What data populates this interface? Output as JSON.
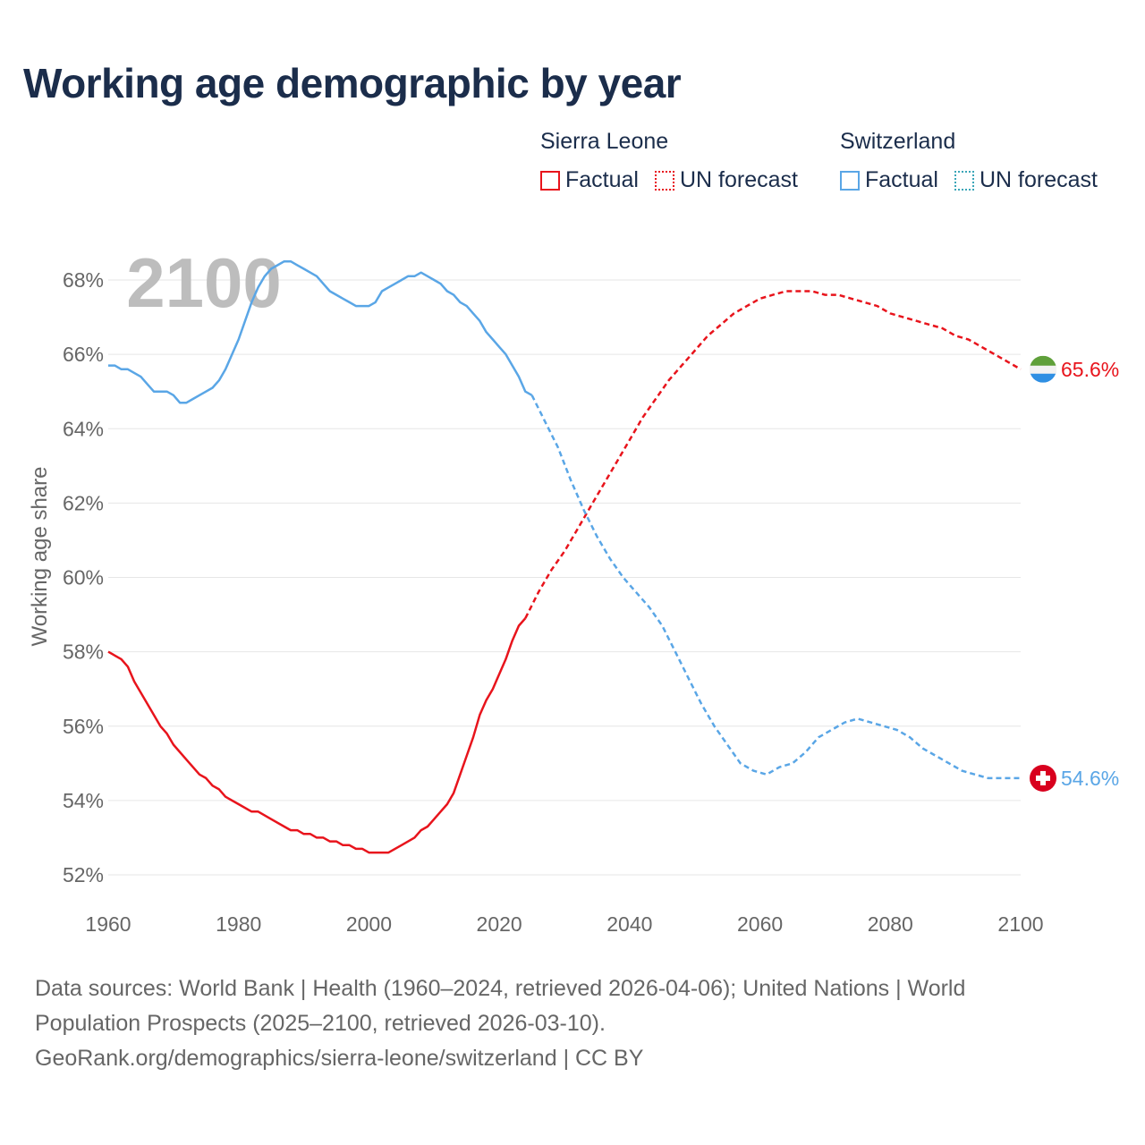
{
  "title": "Working age demographic by year",
  "legend": {
    "groups": [
      {
        "country": "Sierra Leone",
        "factual": "Factual",
        "forecast": "UN forecast"
      },
      {
        "country": "Switzerland",
        "factual": "Factual",
        "forecast": "UN forecast"
      }
    ]
  },
  "year_overlay": "2100",
  "source": {
    "line1": "Data sources: World Bank | Health (1960–2024, retrieved 2026-04-06); United Nations | World",
    "line2": "Population Prospects (2025–2100, retrieved 2026-03-10).",
    "line3": "GeoRank.org/demographics/sierra-leone/switzerland | CC BY"
  },
  "colors": {
    "sierra_leone": "#e8141c",
    "switzerland": "#5aa6e6",
    "title": "#1b2d4b",
    "grid": "#e6e6e6",
    "axis_text": "#666666",
    "overlay": "#bdbdbd"
  },
  "chart_data": {
    "type": "line",
    "title": "Working age demographic by year",
    "ylabel": "Working age share",
    "xlabel": "",
    "xlim": [
      1960,
      2100
    ],
    "ylim": [
      51.5,
      69.0
    ],
    "x_ticks": [
      1960,
      1980,
      2000,
      2020,
      2040,
      2060,
      2080,
      2100
    ],
    "x_tick_labels": [
      "1960",
      "1980",
      "2000",
      "2020",
      "2040",
      "2060",
      "2080",
      "2100"
    ],
    "y_ticks": [
      52,
      54,
      56,
      58,
      60,
      62,
      64,
      66,
      68
    ],
    "y_tick_labels": [
      "52%",
      "54%",
      "56%",
      "58%",
      "60%",
      "62%",
      "64%",
      "66%",
      "68%"
    ],
    "forecast_start": 2024,
    "series": [
      {
        "name": "Sierra Leone",
        "end_label": "65.6%",
        "end_icon": "sierra-leone-flag-icon",
        "points": [
          [
            1960,
            58.0
          ],
          [
            1962,
            57.8
          ],
          [
            1963,
            57.6
          ],
          [
            1964,
            57.2
          ],
          [
            1966,
            56.6
          ],
          [
            1968,
            56.0
          ],
          [
            1969,
            55.8
          ],
          [
            1970,
            55.5
          ],
          [
            1972,
            55.1
          ],
          [
            1974,
            54.7
          ],
          [
            1975,
            54.6
          ],
          [
            1976,
            54.4
          ],
          [
            1977,
            54.3
          ],
          [
            1978,
            54.1
          ],
          [
            1980,
            53.9
          ],
          [
            1982,
            53.7
          ],
          [
            1983,
            53.7
          ],
          [
            1985,
            53.5
          ],
          [
            1987,
            53.3
          ],
          [
            1988,
            53.2
          ],
          [
            1989,
            53.2
          ],
          [
            1990,
            53.1
          ],
          [
            1991,
            53.1
          ],
          [
            1992,
            53.0
          ],
          [
            1993,
            53.0
          ],
          [
            1994,
            52.9
          ],
          [
            1995,
            52.9
          ],
          [
            1996,
            52.8
          ],
          [
            1997,
            52.8
          ],
          [
            1998,
            52.7
          ],
          [
            1999,
            52.7
          ],
          [
            2000,
            52.6
          ],
          [
            2003,
            52.6
          ],
          [
            2005,
            52.8
          ],
          [
            2007,
            53.0
          ],
          [
            2008,
            53.2
          ],
          [
            2009,
            53.3
          ],
          [
            2010,
            53.5
          ],
          [
            2011,
            53.7
          ],
          [
            2012,
            53.9
          ],
          [
            2013,
            54.2
          ],
          [
            2014,
            54.7
          ],
          [
            2015,
            55.2
          ],
          [
            2016,
            55.7
          ],
          [
            2017,
            56.3
          ],
          [
            2018,
            56.7
          ],
          [
            2019,
            57.0
          ],
          [
            2020,
            57.4
          ],
          [
            2021,
            57.8
          ],
          [
            2022,
            58.3
          ],
          [
            2023,
            58.7
          ],
          [
            2024,
            58.9
          ],
          [
            2026,
            59.6
          ],
          [
            2028,
            60.2
          ],
          [
            2030,
            60.7
          ],
          [
            2032,
            61.3
          ],
          [
            2034,
            61.9
          ],
          [
            2036,
            62.5
          ],
          [
            2038,
            63.1
          ],
          [
            2040,
            63.7
          ],
          [
            2042,
            64.3
          ],
          [
            2044,
            64.8
          ],
          [
            2046,
            65.3
          ],
          [
            2048,
            65.7
          ],
          [
            2050,
            66.1
          ],
          [
            2052,
            66.5
          ],
          [
            2054,
            66.8
          ],
          [
            2056,
            67.1
          ],
          [
            2058,
            67.3
          ],
          [
            2060,
            67.5
          ],
          [
            2062,
            67.6
          ],
          [
            2064,
            67.7
          ],
          [
            2066,
            67.7
          ],
          [
            2068,
            67.7
          ],
          [
            2070,
            67.6
          ],
          [
            2072,
            67.6
          ],
          [
            2074,
            67.5
          ],
          [
            2076,
            67.4
          ],
          [
            2078,
            67.3
          ],
          [
            2080,
            67.1
          ],
          [
            2082,
            67.0
          ],
          [
            2084,
            66.9
          ],
          [
            2086,
            66.8
          ],
          [
            2088,
            66.7
          ],
          [
            2090,
            66.5
          ],
          [
            2092,
            66.4
          ],
          [
            2094,
            66.2
          ],
          [
            2096,
            66.0
          ],
          [
            2098,
            65.8
          ],
          [
            2100,
            65.6
          ]
        ]
      },
      {
        "name": "Switzerland",
        "end_label": "54.6%",
        "end_icon": "switzerland-flag-icon",
        "points": [
          [
            1960,
            65.7
          ],
          [
            1961,
            65.7
          ],
          [
            1962,
            65.6
          ],
          [
            1963,
            65.6
          ],
          [
            1964,
            65.5
          ],
          [
            1965,
            65.4
          ],
          [
            1966,
            65.2
          ],
          [
            1967,
            65.0
          ],
          [
            1968,
            65.0
          ],
          [
            1969,
            65.0
          ],
          [
            1970,
            64.9
          ],
          [
            1971,
            64.7
          ],
          [
            1972,
            64.7
          ],
          [
            1973,
            64.8
          ],
          [
            1974,
            64.9
          ],
          [
            1975,
            65.0
          ],
          [
            1976,
            65.1
          ],
          [
            1977,
            65.3
          ],
          [
            1978,
            65.6
          ],
          [
            1979,
            66.0
          ],
          [
            1980,
            66.4
          ],
          [
            1981,
            66.9
          ],
          [
            1982,
            67.4
          ],
          [
            1983,
            67.8
          ],
          [
            1984,
            68.1
          ],
          [
            1985,
            68.3
          ],
          [
            1986,
            68.4
          ],
          [
            1987,
            68.5
          ],
          [
            1988,
            68.5
          ],
          [
            1989,
            68.4
          ],
          [
            1990,
            68.3
          ],
          [
            1991,
            68.2
          ],
          [
            1992,
            68.1
          ],
          [
            1993,
            67.9
          ],
          [
            1994,
            67.7
          ],
          [
            1995,
            67.6
          ],
          [
            1996,
            67.5
          ],
          [
            1997,
            67.4
          ],
          [
            1998,
            67.3
          ],
          [
            1999,
            67.3
          ],
          [
            2000,
            67.3
          ],
          [
            2001,
            67.4
          ],
          [
            2002,
            67.7
          ],
          [
            2003,
            67.8
          ],
          [
            2004,
            67.9
          ],
          [
            2005,
            68.0
          ],
          [
            2006,
            68.1
          ],
          [
            2007,
            68.1
          ],
          [
            2008,
            68.2
          ],
          [
            2009,
            68.1
          ],
          [
            2010,
            68.0
          ],
          [
            2011,
            67.9
          ],
          [
            2012,
            67.7
          ],
          [
            2013,
            67.6
          ],
          [
            2014,
            67.4
          ],
          [
            2015,
            67.3
          ],
          [
            2016,
            67.1
          ],
          [
            2017,
            66.9
          ],
          [
            2018,
            66.6
          ],
          [
            2019,
            66.4
          ],
          [
            2020,
            66.2
          ],
          [
            2021,
            66.0
          ],
          [
            2022,
            65.7
          ],
          [
            2023,
            65.4
          ],
          [
            2024,
            65.0
          ],
          [
            2025,
            64.9
          ],
          [
            2027,
            64.2
          ],
          [
            2029,
            63.5
          ],
          [
            2031,
            62.6
          ],
          [
            2033,
            61.8
          ],
          [
            2035,
            61.1
          ],
          [
            2037,
            60.5
          ],
          [
            2039,
            60.0
          ],
          [
            2041,
            59.6
          ],
          [
            2043,
            59.2
          ],
          [
            2045,
            58.7
          ],
          [
            2047,
            58.0
          ],
          [
            2049,
            57.3
          ],
          [
            2051,
            56.6
          ],
          [
            2053,
            56.0
          ],
          [
            2055,
            55.5
          ],
          [
            2057,
            55.0
          ],
          [
            2059,
            54.8
          ],
          [
            2061,
            54.7
          ],
          [
            2063,
            54.9
          ],
          [
            2065,
            55.0
          ],
          [
            2067,
            55.3
          ],
          [
            2069,
            55.7
          ],
          [
            2071,
            55.9
          ],
          [
            2073,
            56.1
          ],
          [
            2075,
            56.2
          ],
          [
            2077,
            56.1
          ],
          [
            2079,
            56.0
          ],
          [
            2081,
            55.9
          ],
          [
            2083,
            55.7
          ],
          [
            2085,
            55.4
          ],
          [
            2087,
            55.2
          ],
          [
            2089,
            55.0
          ],
          [
            2091,
            54.8
          ],
          [
            2093,
            54.7
          ],
          [
            2095,
            54.6
          ],
          [
            2100,
            54.6
          ]
        ]
      }
    ]
  }
}
